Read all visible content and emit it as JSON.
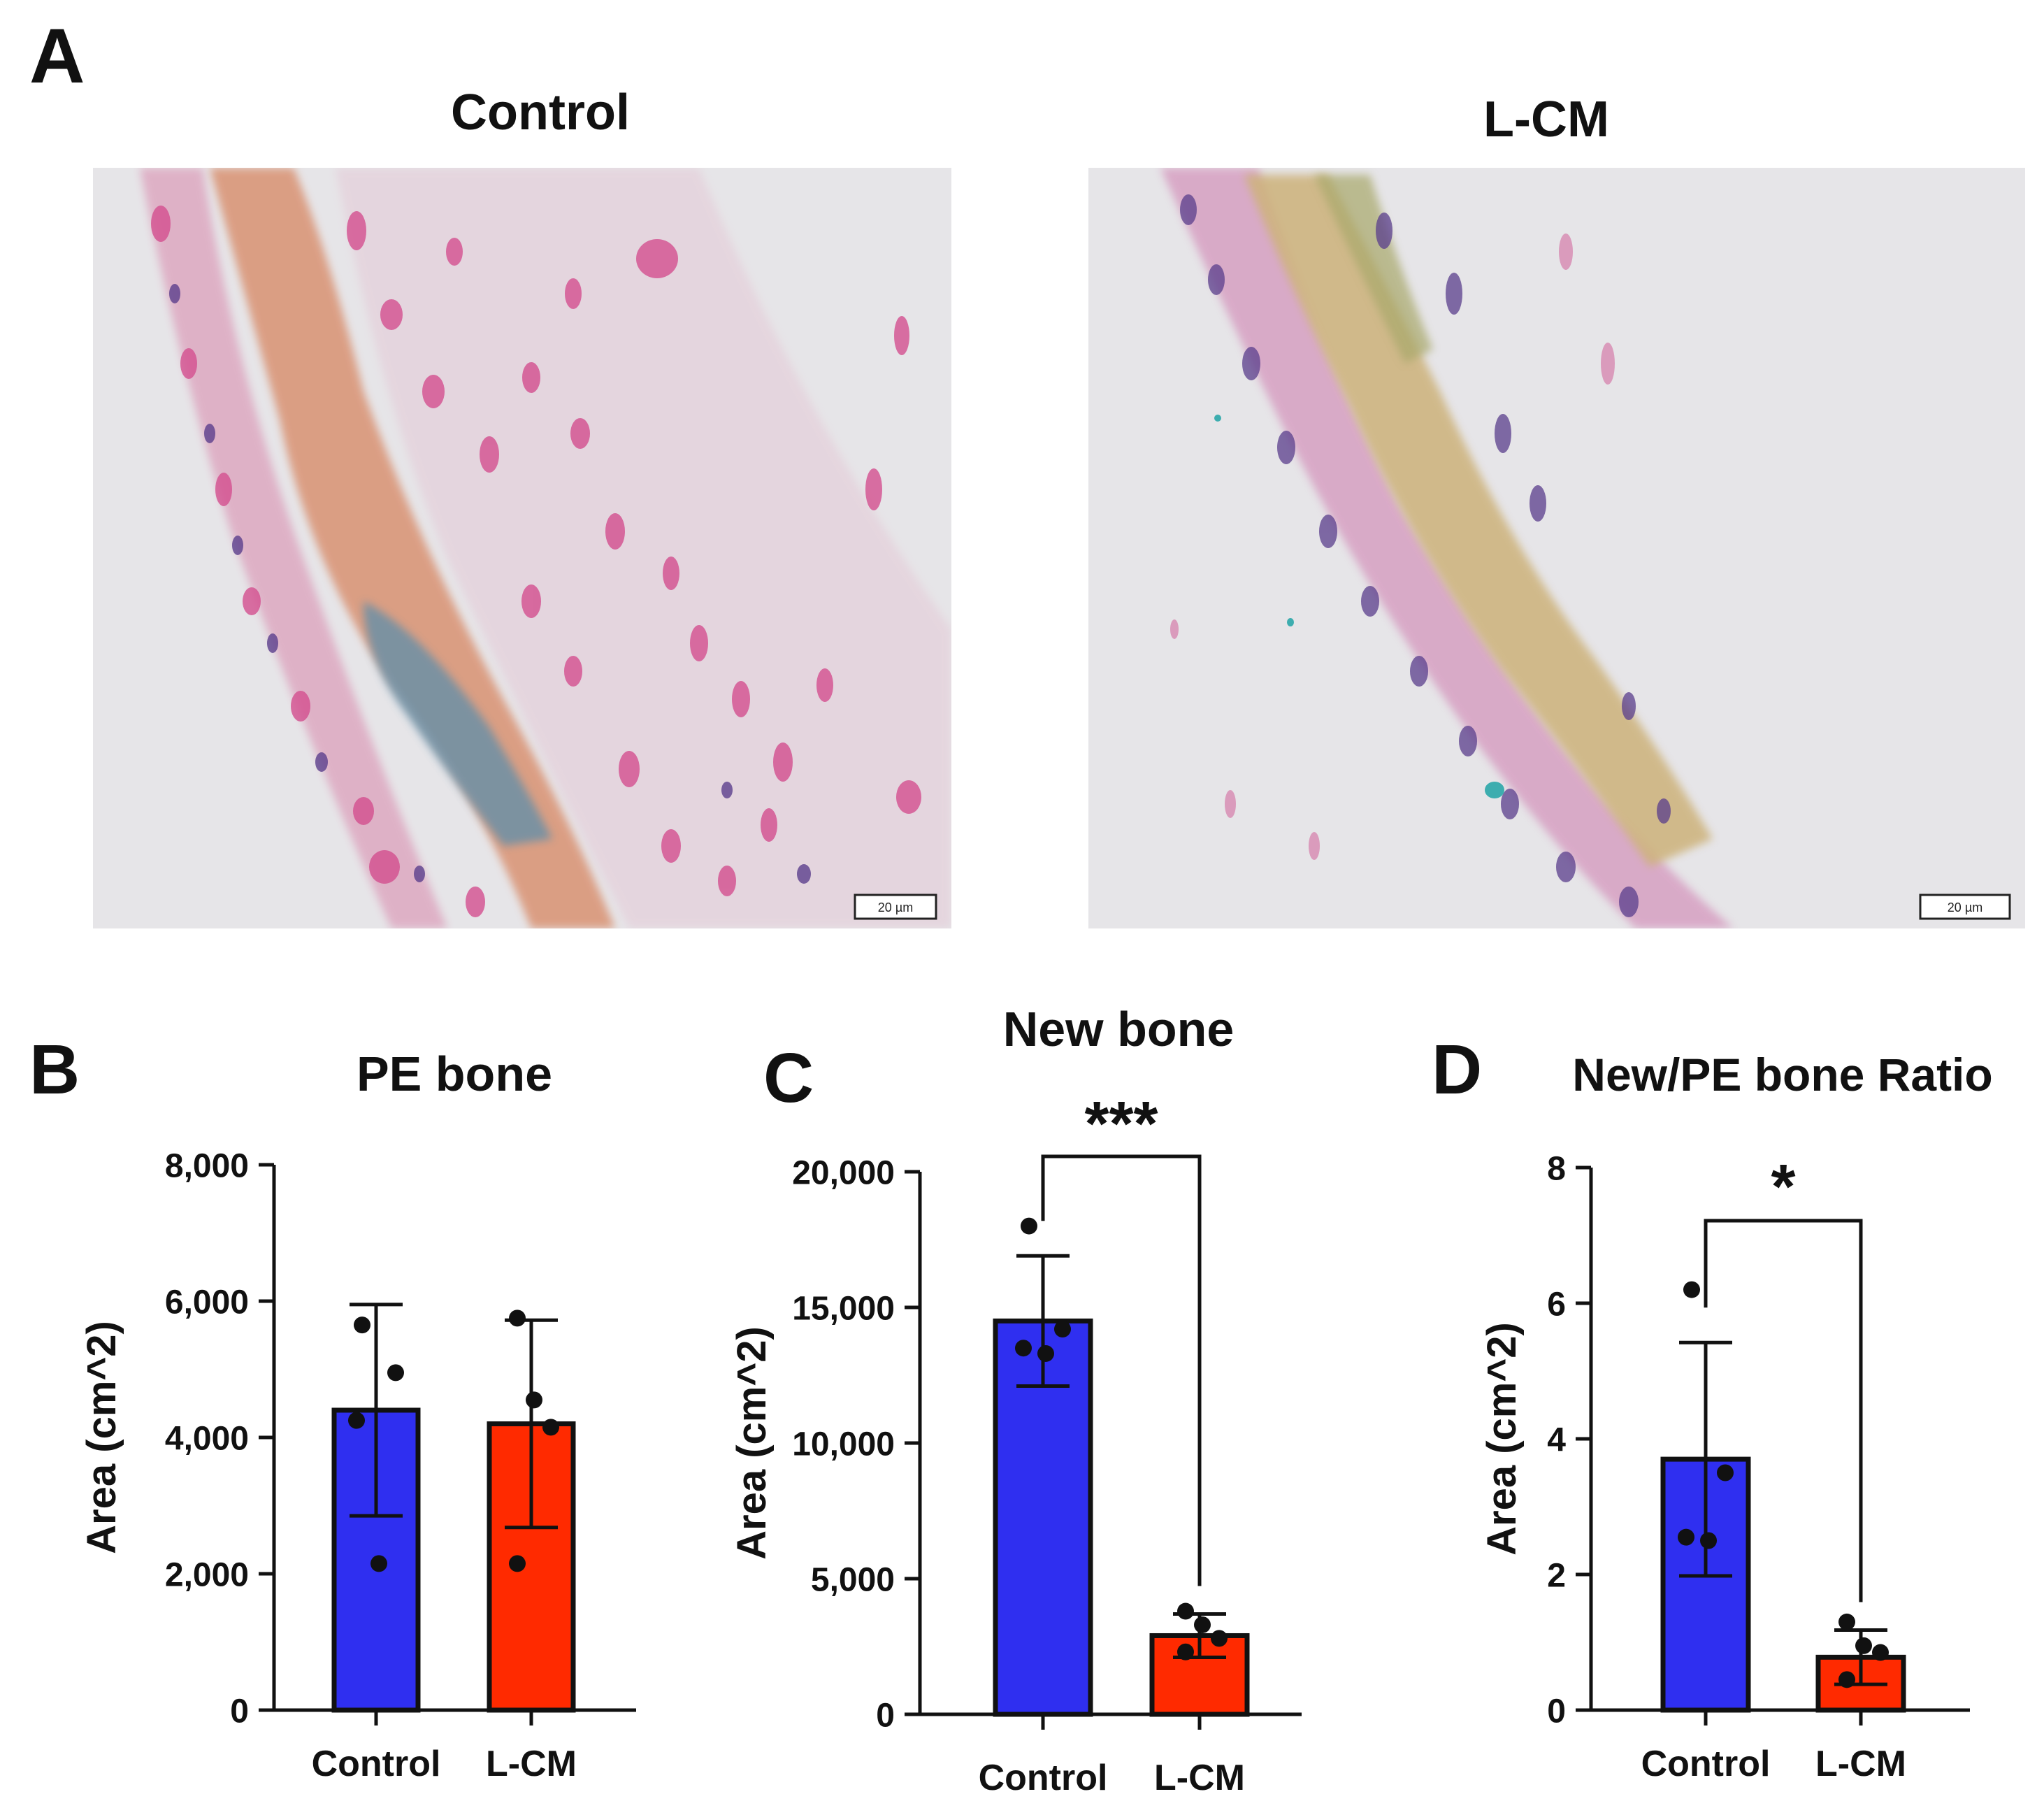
{
  "panel_a": {
    "letter": "A",
    "images": [
      {
        "title": "Control",
        "scale_bar": "20 µm"
      },
      {
        "title": "L-CM",
        "scale_bar": "20 µm"
      }
    ]
  },
  "colors": {
    "control": "#2f2ff0",
    "lcm": "#ff2a00",
    "axis": "#111111",
    "tissue_pink": "#d8609a",
    "tissue_orange": "#d89070",
    "tissue_blue": "#5a8aa8",
    "nuclei": "#5a3d8a"
  },
  "chart_data": [
    {
      "letter": "B",
      "type": "bar",
      "title": "PE bone",
      "ylabel": "Area (cm^2)",
      "categories": [
        "Control",
        "L-CM"
      ],
      "values": [
        4400,
        4200
      ],
      "errors": [
        1550,
        1520
      ],
      "points": [
        [
          5650,
          4950,
          4250,
          2150
        ],
        [
          5750,
          4550,
          4150,
          2150
        ]
      ],
      "ylim": [
        0,
        8000
      ],
      "yticks": [
        0,
        2000,
        4000,
        6000,
        8000
      ],
      "yticklabels": [
        "0",
        "2,000",
        "4,000",
        "6,000",
        "8,000"
      ],
      "significance": null
    },
    {
      "letter": "C",
      "type": "bar",
      "title": "New bone",
      "ylabel": "Area (cm^2)",
      "categories": [
        "Control",
        "L-CM"
      ],
      "values": [
        14500,
        2900
      ],
      "errors": [
        2400,
        800
      ],
      "points": [
        [
          18000,
          14200,
          13500,
          13300
        ],
        [
          3800,
          3300,
          2800,
          2300
        ]
      ],
      "ylim": [
        0,
        20000
      ],
      "yticks": [
        0,
        5000,
        10000,
        15000,
        20000
      ],
      "yticklabels": [
        "0",
        "5,000",
        "10,000",
        "15,000",
        "20,000"
      ],
      "significance": "***"
    },
    {
      "letter": "D",
      "type": "bar",
      "title": "New/PE bone Ratio",
      "ylabel": "Area (cm^2)",
      "categories": [
        "Control",
        "L-CM"
      ],
      "values": [
        3.7,
        0.78
      ],
      "errors": [
        1.72,
        0.4
      ],
      "points": [
        [
          6.2,
          3.5,
          2.55,
          2.5
        ],
        [
          1.3,
          0.95,
          0.85,
          0.45
        ]
      ],
      "ylim": [
        0,
        8
      ],
      "yticks": [
        0,
        2,
        4,
        6,
        8
      ],
      "yticklabels": [
        "0",
        "2",
        "4",
        "6",
        "8"
      ],
      "significance": "*"
    }
  ]
}
